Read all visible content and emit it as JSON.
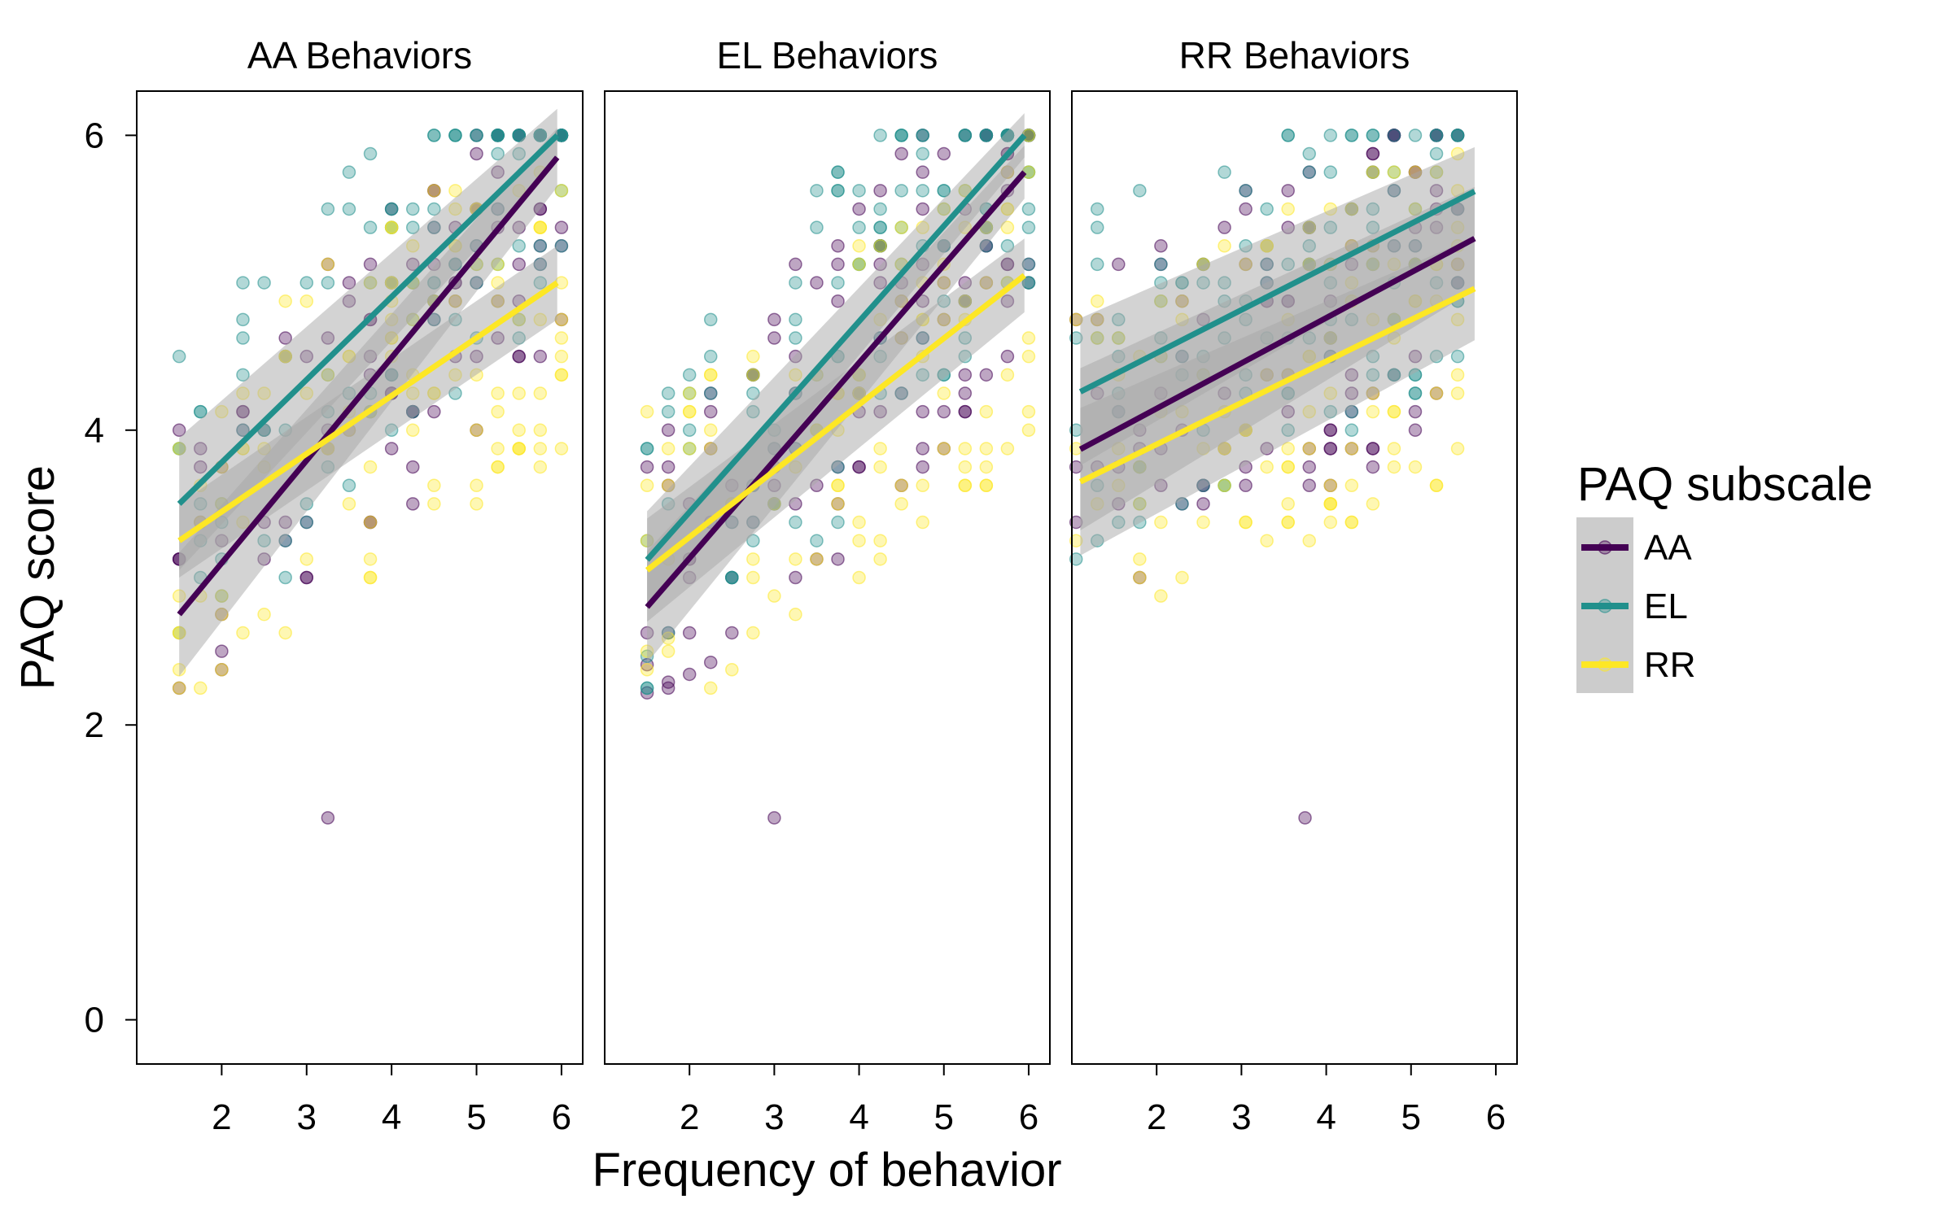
{
  "chart_data": {
    "type": "scatter",
    "xlabel": "Frequency of behavior",
    "ylabel": "PAQ score",
    "legend": {
      "title": "PAQ subscale",
      "placement": "right",
      "entries": [
        "AA",
        "EL",
        "RR"
      ]
    },
    "colors": {
      "AA": "#440154",
      "EL": "#21908c",
      "RR": "#fde725",
      "band": "#a8a8a8"
    },
    "xlim": [
      1.0,
      6.25
    ],
    "ylim": [
      -0.3,
      6.3
    ],
    "x_ticks": [
      "2",
      "3",
      "4",
      "5",
      "6"
    ],
    "y_ticks": [
      "0",
      "2",
      "4",
      "6"
    ],
    "panels": [
      {
        "title": "AA Behaviors",
        "xrange": [
          1.5,
          6.0
        ],
        "fits": [
          {
            "series": "AA",
            "x": [
              1.5,
              5.95
            ],
            "y": [
              2.75,
              5.85
            ],
            "ci": [
              0.42,
              0.2
            ]
          },
          {
            "series": "EL",
            "x": [
              1.5,
              5.95
            ],
            "y": [
              3.5,
              6.0
            ],
            "ci": [
              0.45,
              0.18
            ]
          },
          {
            "series": "RR",
            "x": [
              1.5,
              5.95
            ],
            "y": [
              3.25,
              5.0
            ],
            "ci": [
              0.25,
              0.25
            ]
          }
        ]
      },
      {
        "title": "EL Behaviors",
        "xrange": [
          1.5,
          6.0
        ],
        "fits": [
          {
            "series": "AA",
            "x": [
              1.5,
              5.95
            ],
            "y": [
              2.8,
              5.75
            ],
            "ci": [
              0.38,
              0.18
            ]
          },
          {
            "series": "EL",
            "x": [
              1.5,
              5.95
            ],
            "y": [
              3.12,
              6.0
            ],
            "ci": [
              0.33,
              0.15
            ]
          },
          {
            "series": "RR",
            "x": [
              1.5,
              5.95
            ],
            "y": [
              3.05,
              5.05
            ],
            "ci": [
              0.35,
              0.25
            ]
          }
        ]
      },
      {
        "title": "RR Behaviors",
        "xrange": [
          1.05,
          5.75
        ],
        "fits": [
          {
            "series": "AA",
            "x": [
              1.1,
              5.75
            ],
            "y": [
              3.87,
              5.3
            ],
            "ci": [
              0.55,
              0.35
            ]
          },
          {
            "series": "EL",
            "x": [
              1.1,
              5.75
            ],
            "y": [
              4.26,
              5.62
            ],
            "ci": [
              0.5,
              0.3
            ]
          },
          {
            "series": "RR",
            "x": [
              1.1,
              5.75
            ],
            "y": [
              3.65,
              4.96
            ],
            "ci": [
              0.5,
              0.35
            ]
          }
        ]
      }
    ]
  }
}
